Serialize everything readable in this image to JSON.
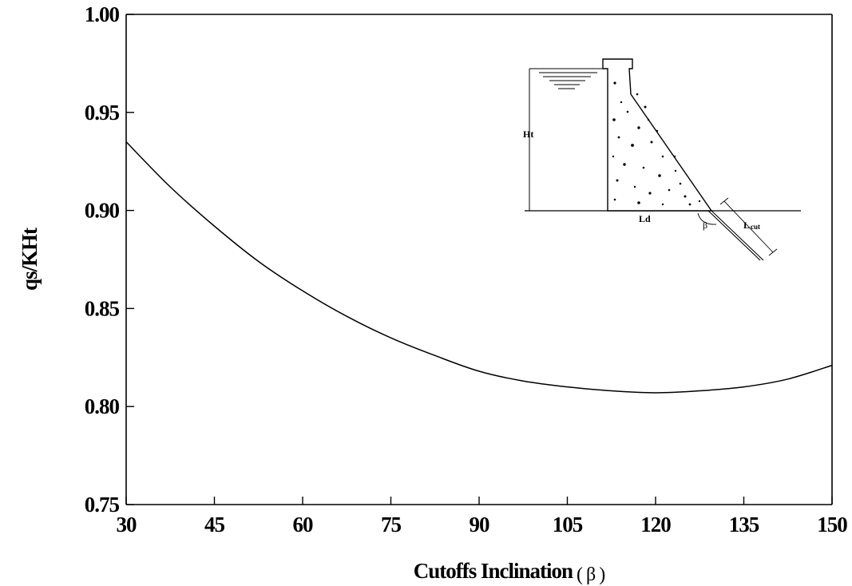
{
  "chart_data": {
    "type": "line",
    "title": "",
    "xlabel": "Cutoffs Inclination",
    "xlabel_symbol": "( β )",
    "ylabel": "qs/KHt",
    "xlim": [
      30,
      150
    ],
    "ylim": [
      0.75,
      1.0
    ],
    "x_ticks": [
      "30",
      "45",
      "60",
      "75",
      "90",
      "105",
      "120",
      "135",
      "150"
    ],
    "y_ticks": [
      "0.75",
      "0.80",
      "0.85",
      "0.90",
      "0.95",
      "1.00"
    ],
    "grid": false,
    "series": [
      {
        "x": [
          30,
          37.5,
          45,
          52.5,
          60,
          67.5,
          75,
          82.5,
          90,
          97.5,
          105,
          112.5,
          120,
          127.5,
          135,
          142.5,
          150
        ],
        "y": [
          0.935,
          0.912,
          0.892,
          0.874,
          0.859,
          0.846,
          0.835,
          0.826,
          0.818,
          0.813,
          0.81,
          0.808,
          0.807,
          0.808,
          0.81,
          0.814,
          0.821
        ]
      }
    ],
    "inset": {
      "labels": {
        "height": "Ht",
        "base": "Ld",
        "angle": "β",
        "cutoff_L": "L",
        "cutoff_sub": "cut"
      }
    }
  }
}
